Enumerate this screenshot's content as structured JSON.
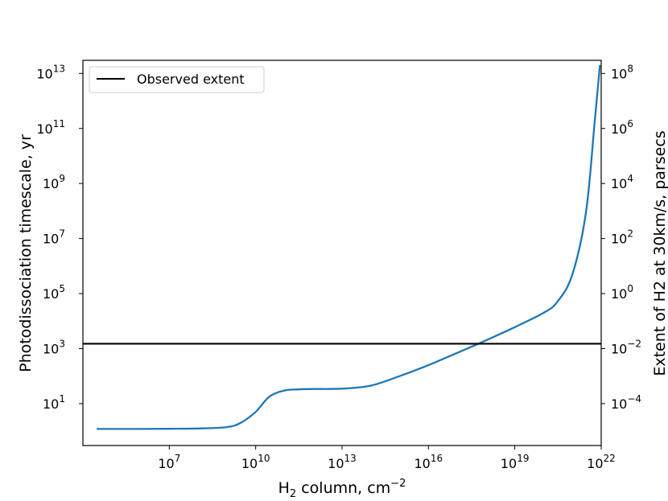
{
  "chart_data": {
    "type": "line",
    "xscale": "log",
    "yscale": "log",
    "xlim": [
      10000.0,
      1e+22
    ],
    "ylim": [
      0.3,
      30000000000000.0
    ],
    "x_ticks": [
      10000000.0,
      10000000000.0,
      10000000000000.0,
      1e+16,
      1e+19,
      1e+22
    ],
    "y_ticks": [
      10,
      1000,
      100000,
      10000000,
      1000000000,
      100000000000,
      10000000000000
    ],
    "right_axis": {
      "scale": "log",
      "label": "Extent of H2 at 30km/s, parsecs",
      "ticks": [
        0.0001,
        0.01,
        1,
        100,
        10000,
        1000000,
        100000000
      ]
    },
    "labels": {
      "xlabel_main": "H",
      "xlabel_sub": "2",
      "xlabel_rest": " column, cm",
      "xlabel_sup": "−2",
      "ylabel": "Photodissociation timescale, yr",
      "ylabel_right": "Extent of H2 at 30km/s, parsecs"
    },
    "tick_labels": {
      "x": [
        {
          "base": "10",
          "exp": "7"
        },
        {
          "base": "10",
          "exp": "10"
        },
        {
          "base": "10",
          "exp": "13"
        },
        {
          "base": "10",
          "exp": "16"
        },
        {
          "base": "10",
          "exp": "19"
        },
        {
          "base": "10",
          "exp": "22"
        }
      ],
      "y": [
        {
          "base": "10",
          "exp": "1"
        },
        {
          "base": "10",
          "exp": "3"
        },
        {
          "base": "10",
          "exp": "5"
        },
        {
          "base": "10",
          "exp": "7"
        },
        {
          "base": "10",
          "exp": "9"
        },
        {
          "base": "10",
          "exp": "11"
        },
        {
          "base": "10",
          "exp": "13"
        }
      ],
      "y_right": [
        {
          "base": "10",
          "exp": "−4"
        },
        {
          "base": "10",
          "exp": "−2"
        },
        {
          "base": "10",
          "exp": "0"
        },
        {
          "base": "10",
          "exp": "2"
        },
        {
          "base": "10",
          "exp": "4"
        },
        {
          "base": "10",
          "exp": "6"
        },
        {
          "base": "10",
          "exp": "8"
        }
      ]
    },
    "series": [
      {
        "color": "#1f77b4",
        "x": [
          30000.0,
          100000.0,
          1000000.0,
          10000000.0,
          100000000.0,
          1000000000.0,
          3000000000.0,
          10000000000.0,
          30000000000.0,
          100000000000.0,
          300000000000.0,
          1000000000000.0,
          10000000000000.0,
          100000000000000.0,
          1000000000000000.0,
          1e+16,
          1e+17,
          1e+18,
          1e+19,
          1e+20,
          3e+20,
          1e+21,
          3e+21,
          6e+21,
          9e+21
        ],
        "y": [
          1.2,
          1.2,
          1.2,
          1.22,
          1.25,
          1.4,
          2.0,
          5.0,
          18,
          30,
          33,
          34,
          35,
          45,
          100,
          250,
          700,
          2000,
          6000,
          20000,
          50000,
          500000,
          100000000,
          200000000000,
          20000000000000.0
        ]
      }
    ],
    "hlines": [
      {
        "name": "Observed extent",
        "y": 1500,
        "color": "#000000"
      }
    ],
    "legend": {
      "position": "top-left",
      "entries": [
        "Observed extent"
      ]
    },
    "grid": false
  }
}
